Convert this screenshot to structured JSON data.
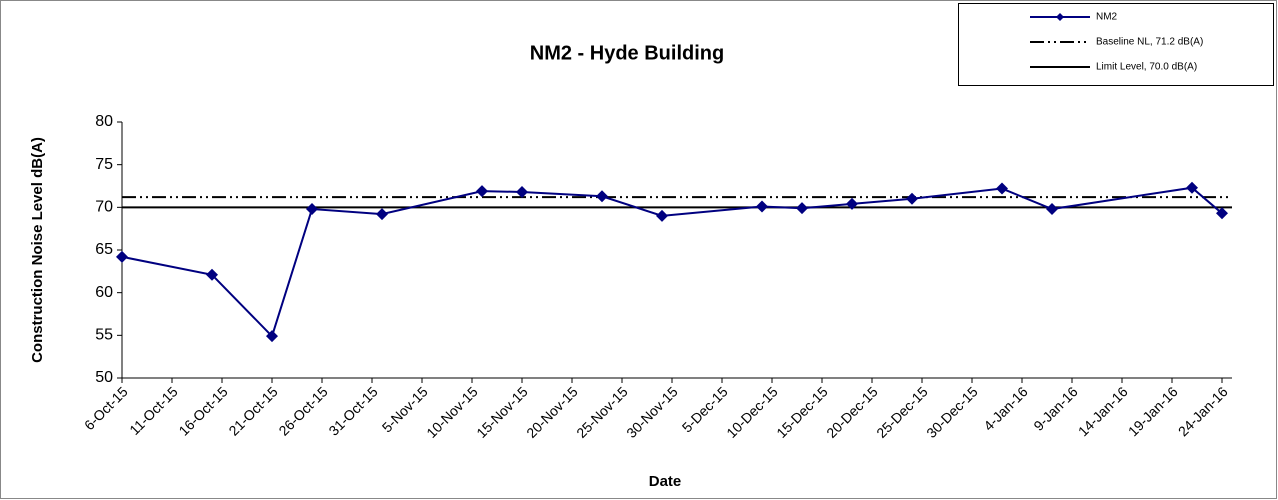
{
  "chart_data": {
    "type": "line",
    "title": "NM2 - Hyde Building",
    "x_label": "Date",
    "y_label": "Construction Noise Level  dB(A)",
    "x": [
      "2015-10-06",
      "2015-10-15",
      "2015-10-21",
      "2015-10-25",
      "2015-11-01",
      "2015-11-11",
      "2015-11-15",
      "2015-11-23",
      "2015-11-29",
      "2015-12-09",
      "2015-12-13",
      "2015-12-18",
      "2015-12-24",
      "2016-01-02",
      "2016-01-07",
      "2016-01-21",
      "2016-01-24"
    ],
    "series": [
      {
        "name": "NM2",
        "color": "#000080",
        "values": [
          64.2,
          62.1,
          54.9,
          69.8,
          69.2,
          71.9,
          71.8,
          71.3,
          69.0,
          70.1,
          69.9,
          70.4,
          71.0,
          72.2,
          69.8,
          72.3,
          69.3
        ]
      }
    ],
    "reference_lines": [
      {
        "name": "Baseline NL, 71.2 dB(A)",
        "value": 71.2,
        "style": "dashdot",
        "color": "#000000"
      },
      {
        "name": "Limit Level, 70.0 dB(A)",
        "value": 70.0,
        "style": "solid",
        "color": "#000000"
      }
    ],
    "xlim": [
      "2015-10-06",
      "2016-01-24"
    ],
    "xticks": [
      {
        "value": "2015-10-06",
        "label": "6-Oct-15"
      },
      {
        "value": "2015-10-11",
        "label": "11-Oct-15"
      },
      {
        "value": "2015-10-16",
        "label": "16-Oct-15"
      },
      {
        "value": "2015-10-21",
        "label": "21-Oct-15"
      },
      {
        "value": "2015-10-26",
        "label": "26-Oct-15"
      },
      {
        "value": "2015-10-31",
        "label": "31-Oct-15"
      },
      {
        "value": "2015-11-05",
        "label": "5-Nov-15"
      },
      {
        "value": "2015-11-10",
        "label": "10-Nov-15"
      },
      {
        "value": "2015-11-15",
        "label": "15-Nov-15"
      },
      {
        "value": "2015-11-20",
        "label": "20-Nov-15"
      },
      {
        "value": "2015-11-25",
        "label": "25-Nov-15"
      },
      {
        "value": "2015-11-30",
        "label": "30-Nov-15"
      },
      {
        "value": "2015-12-05",
        "label": "5-Dec-15"
      },
      {
        "value": "2015-12-10",
        "label": "10-Dec-15"
      },
      {
        "value": "2015-12-15",
        "label": "15-Dec-15"
      },
      {
        "value": "2015-12-20",
        "label": "20-Dec-15"
      },
      {
        "value": "2015-12-25",
        "label": "25-Dec-15"
      },
      {
        "value": "2015-12-30",
        "label": "30-Dec-15"
      },
      {
        "value": "2016-01-04",
        "label": "4-Jan-16"
      },
      {
        "value": "2016-01-09",
        "label": "9-Jan-16"
      },
      {
        "value": "2016-01-14",
        "label": "14-Jan-16"
      },
      {
        "value": "2016-01-19",
        "label": "19-Jan-16"
      },
      {
        "value": "2016-01-24",
        "label": "24-Jan-16"
      }
    ],
    "ylim": [
      50,
      80
    ],
    "yticks": [
      50,
      55,
      60,
      65,
      70,
      75,
      80
    ],
    "grid": false,
    "legend": "top-right"
  }
}
